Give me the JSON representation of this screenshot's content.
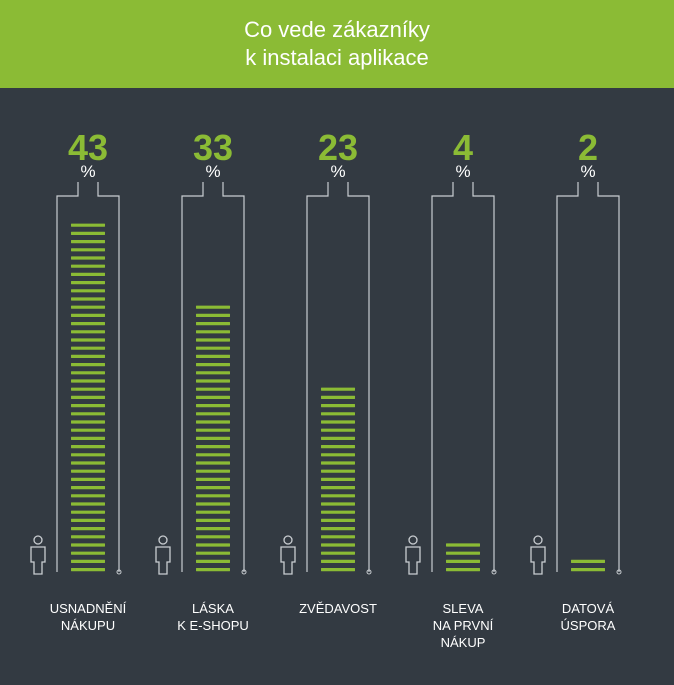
{
  "header": {
    "title_line1": "Co vede zákazníky",
    "title_line2": "k instalaci aplikace"
  },
  "colors": {
    "accent": "#8bbb35",
    "background": "#333a42",
    "line": "#c9cdd1",
    "text": "#ffffff"
  },
  "chart_data": {
    "type": "bar",
    "title": "Co vede zákazníky k instalaci aplikace",
    "categories": [
      [
        "USNADNĚNÍ",
        "NÁKUPU"
      ],
      [
        "LÁSKA",
        "K E-SHOPU"
      ],
      [
        "ZVĚDAVOST"
      ],
      [
        "SLEVA",
        "NA PRVNÍ",
        "NÁKUP"
      ],
      [
        "DATOVÁ",
        "ÚSPORA"
      ]
    ],
    "values": [
      43,
      33,
      23,
      4,
      2
    ],
    "unit": "%",
    "ylim": [
      0,
      43
    ],
    "grid": false,
    "legend": "none"
  }
}
